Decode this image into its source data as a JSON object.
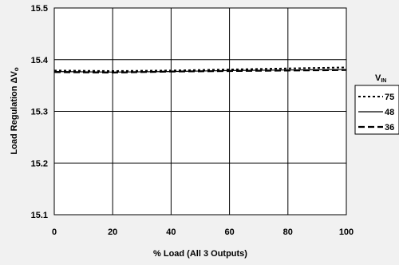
{
  "chart_data": {
    "type": "line",
    "title": "",
    "xlabel": "% Load (All 3 Outputs)",
    "ylabel": "Load Regulation ΔV",
    "ylabel_subscript": "o",
    "xlim": [
      0,
      100
    ],
    "ylim": [
      15.1,
      15.5
    ],
    "x_ticks": [
      "0",
      "20",
      "40",
      "60",
      "80",
      "100"
    ],
    "y_ticks": [
      "15.1",
      "15.2",
      "15.3",
      "15.4",
      "15.5"
    ],
    "grid": true,
    "legend": {
      "title": "V",
      "title_subscript": "IN",
      "placement": "right"
    },
    "x": [
      0,
      20,
      40,
      60,
      80,
      100
    ],
    "series": [
      {
        "name": "75",
        "style": "dotted",
        "values": [
          15.379,
          15.378,
          15.379,
          15.381,
          15.383,
          15.385
        ]
      },
      {
        "name": "48",
        "style": "solid",
        "values": [
          15.377,
          15.376,
          15.377,
          15.379,
          15.38,
          15.381
        ]
      },
      {
        "name": "36",
        "style": "dashed",
        "values": [
          15.376,
          15.375,
          15.377,
          15.378,
          15.379,
          15.38
        ]
      }
    ],
    "colors": {
      "plot_background": "#ffffff",
      "page_background": "#f1f1f1",
      "lines": "#000000"
    }
  }
}
